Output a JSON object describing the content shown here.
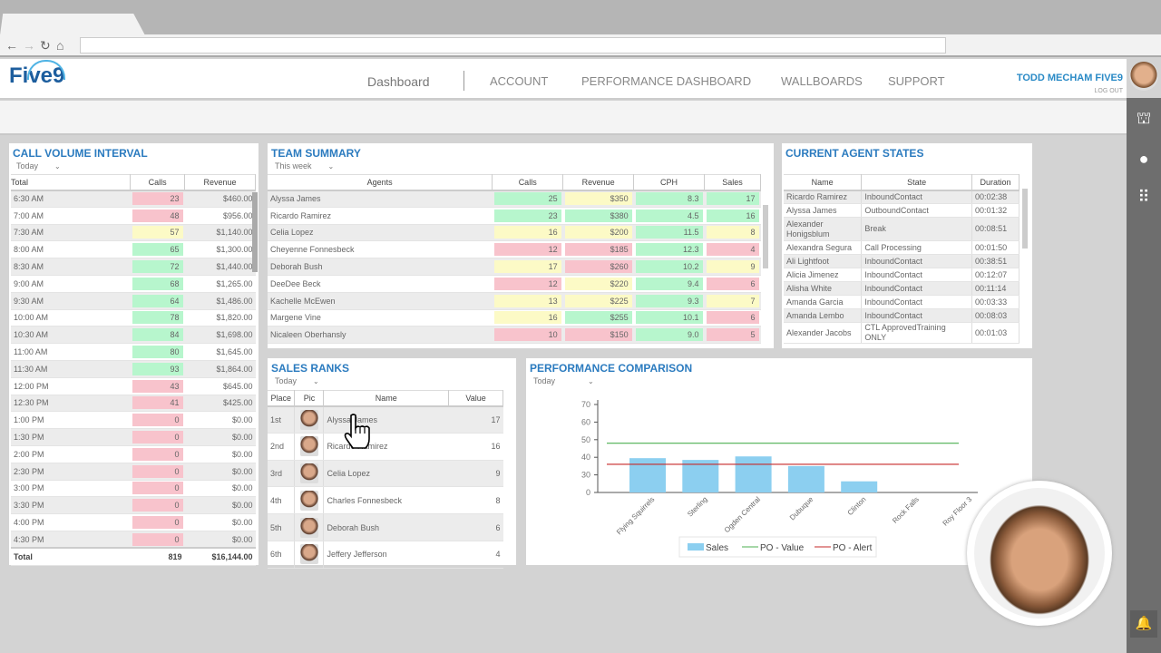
{
  "header": {
    "logo": "Five9",
    "nav": [
      "Dashboard",
      "ACCOUNT",
      "PERFORMANCE DASHBOARD",
      "WALLBOARDS",
      "SUPPORT"
    ],
    "user": "TODD MECHAM FIVE9",
    "logout": "LOG OUT"
  },
  "sidebar_icons": [
    "leaderboard-icon",
    "chat-icon",
    "apps-grid-icon",
    "bell-icon"
  ],
  "call_volume": {
    "title": "CALL VOLUME INTERVAL",
    "filter": "Today",
    "columns": [
      "Total",
      "Calls",
      "Revenue"
    ],
    "rows": [
      [
        "6:30 AM",
        23,
        "$460.00",
        "red"
      ],
      [
        "7:00 AM",
        48,
        "$956.00",
        "red"
      ],
      [
        "7:30 AM",
        57,
        "$1,140.00",
        "yellow"
      ],
      [
        "8:00 AM",
        65,
        "$1,300.00",
        "green"
      ],
      [
        "8:30 AM",
        72,
        "$1,440.00",
        "green"
      ],
      [
        "9:00 AM",
        68,
        "$1,265.00",
        "green"
      ],
      [
        "9:30 AM",
        64,
        "$1,486.00",
        "green"
      ],
      [
        "10:00 AM",
        78,
        "$1,820.00",
        "green"
      ],
      [
        "10:30 AM",
        84,
        "$1,698.00",
        "green"
      ],
      [
        "11:00 AM",
        80,
        "$1,645.00",
        "green"
      ],
      [
        "11:30 AM",
        93,
        "$1,864.00",
        "green"
      ],
      [
        "12:00 PM",
        43,
        "$645.00",
        "red"
      ],
      [
        "12:30 PM",
        41,
        "$425.00",
        "red"
      ],
      [
        "1:00 PM",
        0,
        "$0.00",
        "red"
      ],
      [
        "1:30 PM",
        0,
        "$0.00",
        "red"
      ],
      [
        "2:00 PM",
        0,
        "$0.00",
        "red"
      ],
      [
        "2:30 PM",
        0,
        "$0.00",
        "red"
      ],
      [
        "3:00 PM",
        0,
        "$0.00",
        "red"
      ],
      [
        "3:30 PM",
        0,
        "$0.00",
        "red"
      ],
      [
        "4:00 PM",
        0,
        "$0.00",
        "red"
      ],
      [
        "4:30 PM",
        0,
        "$0.00",
        "red"
      ]
    ],
    "total": {
      "label": "Total",
      "calls": "819",
      "revenue": "$16,144.00"
    }
  },
  "team_summary": {
    "title": "TEAM SUMMARY",
    "filter": "This week",
    "columns": [
      "Agents",
      "Calls",
      "Revenue",
      "CPH",
      "Sales"
    ],
    "rows": [
      {
        "agent": "Alyssa James",
        "cells": [
          [
            "25",
            "green"
          ],
          [
            "$350",
            "yellow"
          ],
          [
            "8.3",
            "green"
          ],
          [
            "17",
            "green"
          ]
        ]
      },
      {
        "agent": "Ricardo Ramirez",
        "cells": [
          [
            "23",
            "green"
          ],
          [
            "$380",
            "green"
          ],
          [
            "4.5",
            "green"
          ],
          [
            "16",
            "green"
          ]
        ]
      },
      {
        "agent": "Celia Lopez",
        "cells": [
          [
            "16",
            "yellow"
          ],
          [
            "$200",
            "yellow"
          ],
          [
            "11.5",
            "green"
          ],
          [
            "8",
            "yellow"
          ]
        ]
      },
      {
        "agent": "Cheyenne Fonnesbeck",
        "cells": [
          [
            "12",
            "red"
          ],
          [
            "$185",
            "red"
          ],
          [
            "12.3",
            "green"
          ],
          [
            "4",
            "red"
          ]
        ]
      },
      {
        "agent": "Deborah Bush",
        "cells": [
          [
            "17",
            "yellow"
          ],
          [
            "$260",
            "red"
          ],
          [
            "10.2",
            "green"
          ],
          [
            "9",
            "yellow"
          ]
        ]
      },
      {
        "agent": "DeeDee Beck",
        "cells": [
          [
            "12",
            "red"
          ],
          [
            "$220",
            "yellow"
          ],
          [
            "9.4",
            "green"
          ],
          [
            "6",
            "red"
          ]
        ]
      },
      {
        "agent": "Kachelle McEwen",
        "cells": [
          [
            "13",
            "yellow"
          ],
          [
            "$225",
            "yellow"
          ],
          [
            "9.3",
            "green"
          ],
          [
            "7",
            "yellow"
          ]
        ]
      },
      {
        "agent": "Margene Vine",
        "cells": [
          [
            "16",
            "yellow"
          ],
          [
            "$255",
            "green"
          ],
          [
            "10.1",
            "green"
          ],
          [
            "6",
            "red"
          ]
        ]
      },
      {
        "agent": "Nicaleen Oberhansly",
        "cells": [
          [
            "10",
            "red"
          ],
          [
            "$150",
            "red"
          ],
          [
            "9.0",
            "green"
          ],
          [
            "5",
            "red"
          ]
        ]
      }
    ]
  },
  "agent_states": {
    "title": "CURRENT AGENT STATES",
    "columns": [
      "Name",
      "State",
      "Duration"
    ],
    "rows": [
      [
        "Ricardo Ramirez",
        "InboundContact",
        "00:02:38"
      ],
      [
        "Alyssa James",
        "OutboundContact",
        "00:01:32"
      ],
      [
        "Alexander Honigsblum",
        "Break",
        "00:08:51"
      ],
      [
        "Alexandra Segura",
        "Call Processing",
        "00:01:50"
      ],
      [
        "Ali Lightfoot",
        "InboundContact",
        "00:38:51"
      ],
      [
        "Alicia Jimenez",
        "InboundContact",
        "00:12:07"
      ],
      [
        "Alisha White",
        "InboundContact",
        "00:11:14"
      ],
      [
        "Amanda Garcia",
        "InboundContact",
        "00:03:33"
      ],
      [
        "Amanda Lembo",
        "InboundContact",
        "00:08:03"
      ],
      [
        "Alexander Jacobs",
        "CTL ApprovedTraining ONLY",
        "00:01:03"
      ]
    ]
  },
  "sales_ranks": {
    "title": "SALES RANKS",
    "filter": "Today",
    "columns": [
      "Place",
      "Pic",
      "Name",
      "Value"
    ],
    "rows": [
      [
        "1st",
        "Alyssa James",
        "17"
      ],
      [
        "2nd",
        "Ricardo Ramirez",
        "16"
      ],
      [
        "3rd",
        "Celia Lopez",
        "9"
      ],
      [
        "4th",
        "Charles Fonnesbeck",
        "8"
      ],
      [
        "5th",
        "Deborah Bush",
        "6"
      ],
      [
        "6th",
        "Jeffery Jefferson",
        "4"
      ]
    ]
  },
  "chart_data": {
    "type": "bar",
    "title": "PERFORMANCE COMPARISON",
    "filter": "Today",
    "categories": [
      "Flying Squirrels",
      "Sterling",
      "Ogden Central",
      "Dubuque",
      "Clinton",
      "Rock Falls",
      "Roy Floor 3"
    ],
    "series": [
      {
        "name": "Sales",
        "type": "bar",
        "values": [
          39.5,
          38.5,
          40.5,
          35,
          19,
          0,
          0
        ],
        "color": "#8ccff0"
      },
      {
        "name": "PO - Value",
        "type": "line",
        "values": [
          48,
          48,
          48,
          48,
          48,
          48,
          48
        ],
        "color": "#4caf50"
      },
      {
        "name": "PO - Alert",
        "type": "line",
        "values": [
          36,
          36,
          36,
          36,
          36,
          36,
          36
        ],
        "color": "#c62828"
      }
    ],
    "yticks": [
      0,
      30,
      40,
      50,
      60,
      70
    ],
    "ylim": [
      0,
      70
    ],
    "grid": false,
    "legend": "bottom"
  }
}
